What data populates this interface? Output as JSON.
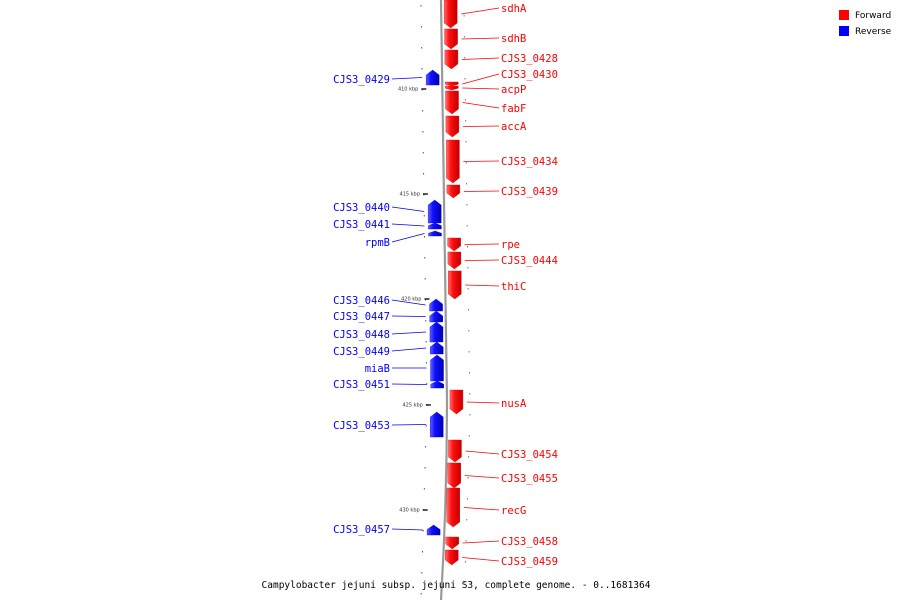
{
  "legend": {
    "forward": {
      "label": "Forward",
      "color": "#ff0000"
    },
    "reverse": {
      "label": "Reverse",
      "color": "#0000ff"
    }
  },
  "caption": "Campylobacter jejuni subsp. jejuni S3, complete genome. - 0..1681364",
  "ticks": [
    {
      "label": "410 kbp"
    },
    {
      "label": "415 kbp"
    },
    {
      "label": "420 kbp"
    },
    {
      "label": "425 kbp"
    },
    {
      "label": "430 kbp"
    }
  ],
  "genes": [
    {
      "name": "sdhA",
      "strand": "forward"
    },
    {
      "name": "sdhB",
      "strand": "forward"
    },
    {
      "name": "CJS3_0428",
      "strand": "forward"
    },
    {
      "name": "CJS3_0429",
      "strand": "reverse"
    },
    {
      "name": "CJS3_0430",
      "strand": "forward"
    },
    {
      "name": "acpP",
      "strand": "forward"
    },
    {
      "name": "fabF",
      "strand": "forward"
    },
    {
      "name": "accA",
      "strand": "forward"
    },
    {
      "name": "CJS3_0434",
      "strand": "forward"
    },
    {
      "name": "CJS3_0439",
      "strand": "forward"
    },
    {
      "name": "CJS3_0440",
      "strand": "reverse"
    },
    {
      "name": "CJS3_0441",
      "strand": "reverse"
    },
    {
      "name": "rpmB",
      "strand": "reverse"
    },
    {
      "name": "rpe",
      "strand": "forward"
    },
    {
      "name": "CJS3_0444",
      "strand": "forward"
    },
    {
      "name": "thiC",
      "strand": "forward"
    },
    {
      "name": "CJS3_0446",
      "strand": "reverse"
    },
    {
      "name": "CJS3_0447",
      "strand": "reverse"
    },
    {
      "name": "CJS3_0448",
      "strand": "reverse"
    },
    {
      "name": "CJS3_0449",
      "strand": "reverse"
    },
    {
      "name": "miaB",
      "strand": "reverse"
    },
    {
      "name": "CJS3_0451",
      "strand": "reverse"
    },
    {
      "name": "nusA",
      "strand": "forward"
    },
    {
      "name": "CJS3_0453",
      "strand": "reverse"
    },
    {
      "name": "CJS3_0454",
      "strand": "forward"
    },
    {
      "name": "CJS3_0455",
      "strand": "forward"
    },
    {
      "name": "recG",
      "strand": "forward"
    },
    {
      "name": "CJS3_0457",
      "strand": "reverse"
    },
    {
      "name": "CJS3_0458",
      "strand": "forward"
    },
    {
      "name": "CJS3_0459",
      "strand": "forward"
    }
  ]
}
